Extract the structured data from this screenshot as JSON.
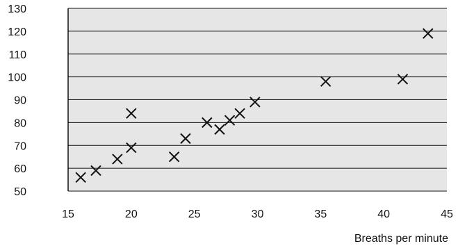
{
  "chart_data": {
    "type": "scatter",
    "title": "",
    "xlabel": "Breaths per minute",
    "ylabel": "",
    "xlim": [
      15,
      45
    ],
    "ylim": [
      50,
      130
    ],
    "xticks": [
      15,
      20,
      25,
      30,
      35,
      40,
      45
    ],
    "yticks": [
      50,
      60,
      70,
      80,
      90,
      100,
      110,
      120,
      130
    ],
    "grid": "horizontal",
    "marker": "x",
    "colors": {
      "plot_background": "#e6e6e6",
      "ink": "#111111"
    },
    "points": [
      {
        "x": 16.0,
        "y": 56
      },
      {
        "x": 17.2,
        "y": 59
      },
      {
        "x": 18.9,
        "y": 64
      },
      {
        "x": 20.0,
        "y": 69
      },
      {
        "x": 20.0,
        "y": 84
      },
      {
        "x": 23.4,
        "y": 65
      },
      {
        "x": 24.3,
        "y": 73
      },
      {
        "x": 26.0,
        "y": 80
      },
      {
        "x": 27.0,
        "y": 77
      },
      {
        "x": 27.8,
        "y": 81
      },
      {
        "x": 28.6,
        "y": 84
      },
      {
        "x": 29.8,
        "y": 89
      },
      {
        "x": 35.4,
        "y": 98
      },
      {
        "x": 41.5,
        "y": 99
      },
      {
        "x": 43.5,
        "y": 119
      }
    ]
  }
}
